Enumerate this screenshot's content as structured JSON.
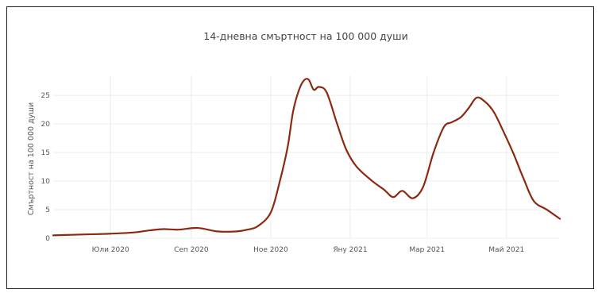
{
  "chart_data": {
    "type": "line",
    "title": "14-дневна смъртност на 100 000 души",
    "xlabel": "",
    "ylabel": "Смъртност на 100 000 души",
    "ylim": [
      0,
      28.5
    ],
    "y_ticks": [
      0,
      5,
      10,
      15,
      20,
      25
    ],
    "x_range": [
      "2020-06-01",
      "2021-06-25"
    ],
    "x_ticks": [
      {
        "date": "2020-07-15",
        "label": "Юли 2020"
      },
      {
        "date": "2020-09-15",
        "label": "Сеп 2020"
      },
      {
        "date": "2020-11-15",
        "label": "Ное 2020"
      },
      {
        "date": "2021-01-15",
        "label": "Яну 2021"
      },
      {
        "date": "2021-03-15",
        "label": "Мар 2021"
      },
      {
        "date": "2021-05-15",
        "label": "Май 2021"
      }
    ],
    "grid": true,
    "line_color": "#8b2a12",
    "series": [
      {
        "name": "",
        "x": [
          "2020-06-01",
          "2020-06-15",
          "2020-07-01",
          "2020-07-15",
          "2020-08-01",
          "2020-08-15",
          "2020-08-25",
          "2020-09-05",
          "2020-09-20",
          "2020-10-05",
          "2020-10-20",
          "2020-10-28",
          "2020-11-05",
          "2020-11-15",
          "2020-11-22",
          "2020-11-28",
          "2020-12-02",
          "2020-12-06",
          "2020-12-10",
          "2020-12-14",
          "2020-12-18",
          "2020-12-22",
          "2020-12-28",
          "2021-01-05",
          "2021-01-12",
          "2021-01-20",
          "2021-02-01",
          "2021-02-10",
          "2021-02-17",
          "2021-02-24",
          "2021-03-04",
          "2021-03-12",
          "2021-03-20",
          "2021-03-28",
          "2021-04-03",
          "2021-04-10",
          "2021-04-16",
          "2021-04-22",
          "2021-04-28",
          "2021-05-05",
          "2021-05-12",
          "2021-05-20",
          "2021-05-28",
          "2021-06-05",
          "2021-06-15",
          "2021-06-25"
        ],
        "y": [
          0.5,
          0.6,
          0.7,
          0.8,
          1.0,
          1.4,
          1.6,
          1.5,
          1.8,
          1.2,
          1.2,
          1.5,
          2.1,
          4.5,
          10.0,
          16.0,
          22.0,
          25.5,
          27.5,
          27.8,
          26.0,
          26.5,
          25.5,
          20.0,
          15.5,
          12.5,
          10.0,
          8.5,
          7.2,
          8.3,
          7.0,
          9.0,
          15.0,
          19.5,
          20.3,
          21.2,
          22.8,
          24.6,
          24.0,
          22.2,
          19.0,
          15.0,
          10.5,
          6.5,
          5.0,
          3.4
        ]
      }
    ]
  }
}
